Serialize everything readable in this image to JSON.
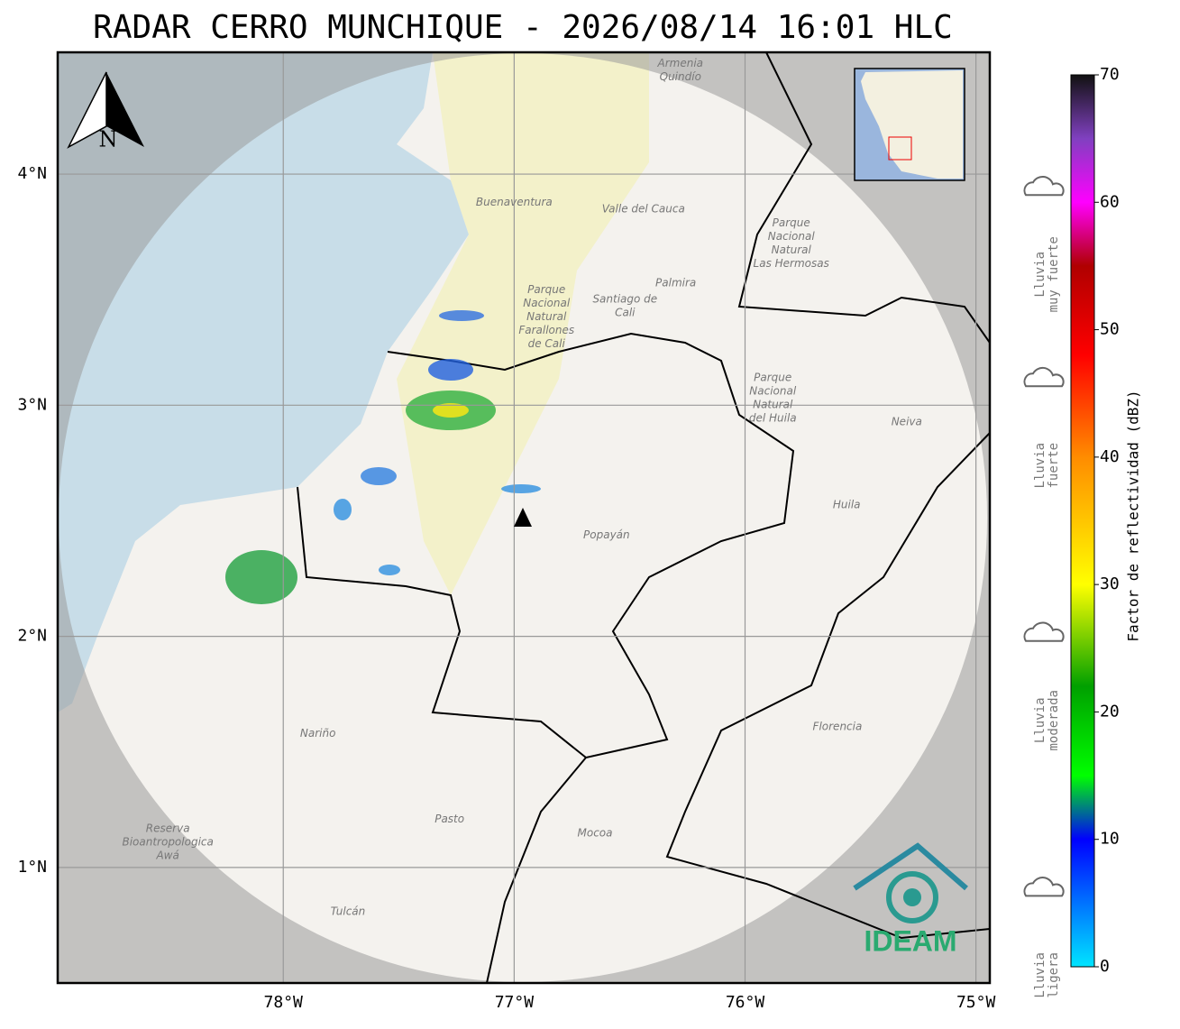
{
  "header": {
    "title": "RADAR CERRO MUNCHIQUE - 2026/08/14 16:01 HLC"
  },
  "map": {
    "lon_range": [
      -78.977,
      -74.94
    ],
    "lat_range": [
      4.527,
      0.5
    ],
    "lon_ticks": [
      {
        "value": -78,
        "label": "78°W"
      },
      {
        "value": -77,
        "label": "77°W"
      },
      {
        "value": -76,
        "label": "76°W"
      },
      {
        "value": -75,
        "label": "75°W"
      }
    ],
    "lat_ticks": [
      {
        "value": 4,
        "label": "4°N"
      },
      {
        "value": 3,
        "label": "3°N"
      },
      {
        "value": 2,
        "label": "2°N"
      },
      {
        "value": 1,
        "label": "1°N"
      }
    ],
    "north_label": "N",
    "logo": "IDEAM",
    "places": [
      {
        "lines": [
          "Armenia",
          "Quindío"
        ],
        "lon": -76.28,
        "lat": 4.48
      },
      {
        "lines": [
          "Buenaventura"
        ],
        "lon": -77.0,
        "lat": 3.88
      },
      {
        "lines": [
          "Valle del Cauca"
        ],
        "lon": -76.44,
        "lat": 3.85
      },
      {
        "lines": [
          "Palmira"
        ],
        "lon": -76.3,
        "lat": 3.53
      },
      {
        "lines": [
          "Santiago de",
          "Cali"
        ],
        "lon": -76.52,
        "lat": 3.46
      },
      {
        "lines": [
          "Parque",
          "Nacional",
          "Natural",
          "Farallones",
          "de Cali"
        ],
        "lon": -76.86,
        "lat": 3.5
      },
      {
        "lines": [
          "Parque",
          "Nacional",
          "Natural",
          "Las Hermosas"
        ],
        "lon": -75.8,
        "lat": 3.79
      },
      {
        "lines": [
          "Parque",
          "Nacional",
          "Natural",
          "del Huila"
        ],
        "lon": -75.88,
        "lat": 3.12
      },
      {
        "lines": [
          "Neiva"
        ],
        "lon": -75.3,
        "lat": 2.93
      },
      {
        "lines": [
          "Huila"
        ],
        "lon": -75.56,
        "lat": 2.57
      },
      {
        "lines": [
          "Popayán"
        ],
        "lon": -76.6,
        "lat": 2.44
      },
      {
        "lines": [
          "Nariño"
        ],
        "lon": -77.85,
        "lat": 1.58
      },
      {
        "lines": [
          "Florencia"
        ],
        "lon": -75.6,
        "lat": 1.61
      },
      {
        "lines": [
          "Pasto"
        ],
        "lon": -77.28,
        "lat": 1.21
      },
      {
        "lines": [
          "Mocoa"
        ],
        "lon": -76.65,
        "lat": 1.15
      },
      {
        "lines": [
          "Reserva",
          "Bioantropologica",
          "Awá"
        ],
        "lon": -78.5,
        "lat": 1.17
      },
      {
        "lines": [
          "Tulcán"
        ],
        "lon": -77.72,
        "lat": 0.81
      }
    ]
  },
  "colorbar": {
    "label": "Factor de reflectividad (dBZ)",
    "range": [
      0,
      70
    ],
    "ticks": [
      0,
      10,
      20,
      30,
      40,
      50,
      60,
      70
    ],
    "stops": [
      {
        "value": 0,
        "color": "#00e5ff"
      },
      {
        "value": 10,
        "color": "#0000ff"
      },
      {
        "value": 15,
        "color": "#00ff00"
      },
      {
        "value": 22,
        "color": "#00a000"
      },
      {
        "value": 30,
        "color": "#ffff00"
      },
      {
        "value": 40,
        "color": "#ff8c00"
      },
      {
        "value": 48,
        "color": "#ff0000"
      },
      {
        "value": 55,
        "color": "#b00000"
      },
      {
        "value": 60,
        "color": "#ff00ff"
      },
      {
        "value": 65,
        "color": "#8040c0"
      },
      {
        "value": 70,
        "color": "#111111"
      }
    ],
    "categories": [
      {
        "lines": [
          "Lluvia",
          "muy fuerte"
        ],
        "value": 60
      },
      {
        "lines": [
          "Lluvia",
          "fuerte"
        ],
        "value": 45
      },
      {
        "lines": [
          "Lluvia",
          "moderada"
        ],
        "value": 25
      },
      {
        "lines": [
          "Lluvia",
          "ligera"
        ],
        "value": 5
      }
    ]
  }
}
